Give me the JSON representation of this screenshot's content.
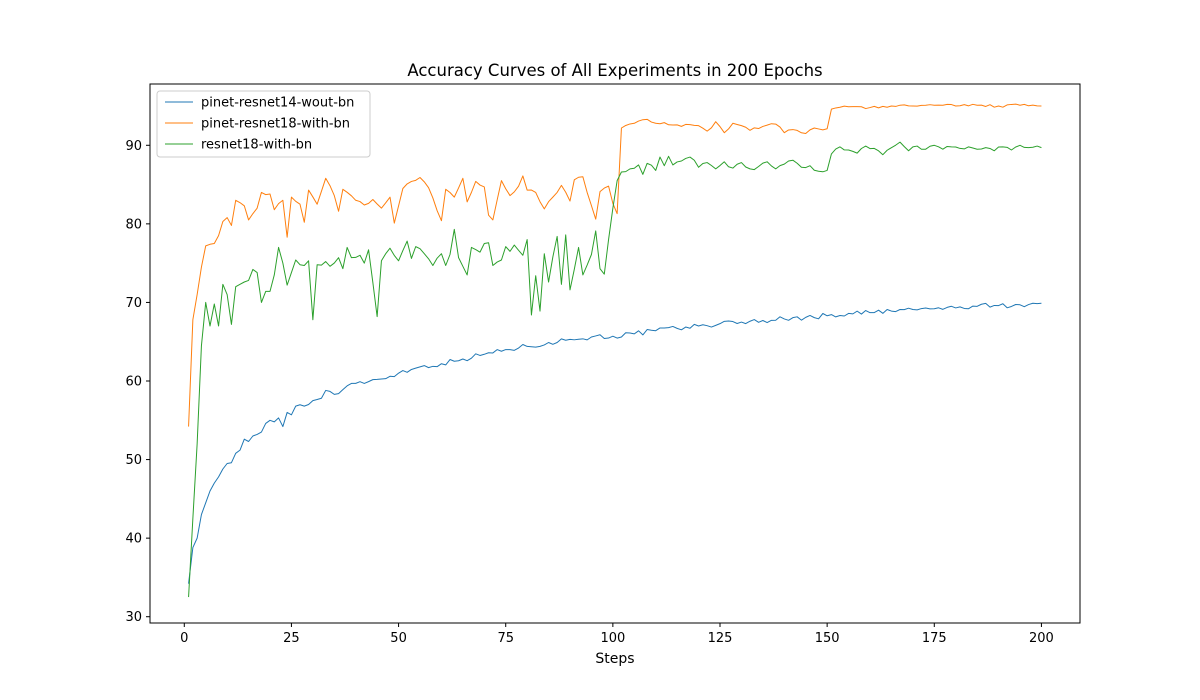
{
  "chart_data": {
    "type": "line",
    "title": "Accuracy Curves of All Experiments in 200 Epochs",
    "xlabel": "Steps",
    "ylabel": "",
    "xlim": [
      -8,
      209
    ],
    "ylim": [
      29.2,
      97.8
    ],
    "xticks": [
      0,
      25,
      50,
      75,
      100,
      125,
      150,
      175,
      200
    ],
    "yticks": [
      30,
      40,
      50,
      60,
      70,
      80,
      90
    ],
    "grid": false,
    "legend_position": "top-left",
    "x_range": [
      1,
      200
    ],
    "series": [
      {
        "name": "pinet-resnet14-wout-bn",
        "color": "#1f77b4",
        "keypoints": [
          [
            1,
            34.2
          ],
          [
            2,
            38.8
          ],
          [
            3,
            40
          ],
          [
            4,
            43
          ],
          [
            5,
            44.5
          ],
          [
            6,
            46
          ],
          [
            7,
            47
          ],
          [
            8,
            47.8
          ],
          [
            9,
            48.8
          ],
          [
            10,
            49.5
          ],
          [
            11,
            49.6
          ],
          [
            12,
            50.8
          ],
          [
            13,
            51.2
          ],
          [
            14,
            52.6
          ],
          [
            15,
            52.3
          ],
          [
            16,
            53
          ],
          [
            17,
            53.2
          ],
          [
            18,
            53.5
          ],
          [
            19,
            54.6
          ],
          [
            20,
            55
          ],
          [
            22,
            55.3
          ],
          [
            23,
            54.2
          ],
          [
            24,
            56
          ],
          [
            25,
            55.7
          ],
          [
            26,
            56.8
          ],
          [
            28,
            56.8
          ],
          [
            30,
            57.5
          ],
          [
            32,
            57.8
          ],
          [
            33,
            58.8
          ],
          [
            35,
            58.3
          ],
          [
            40,
            59.7
          ],
          [
            45,
            60.2
          ],
          [
            50,
            61
          ],
          [
            55,
            61.8
          ],
          [
            60,
            62.2
          ],
          [
            65,
            62.8
          ],
          [
            70,
            63.4
          ],
          [
            75,
            64
          ],
          [
            80,
            64.4
          ],
          [
            85,
            64.9
          ],
          [
            90,
            65.3
          ],
          [
            95,
            65.6
          ],
          [
            100,
            65.7
          ],
          [
            105,
            66
          ],
          [
            110,
            66.4
          ],
          [
            115,
            66.7
          ],
          [
            120,
            67
          ],
          [
            125,
            67.3
          ],
          [
            130,
            67.5
          ],
          [
            135,
            67.7
          ],
          [
            140,
            67.9
          ],
          [
            145,
            68.1
          ],
          [
            150,
            68.3
          ],
          [
            155,
            68.6
          ],
          [
            160,
            68.7
          ],
          [
            165,
            68.9
          ],
          [
            170,
            69.1
          ],
          [
            175,
            69.2
          ],
          [
            180,
            69.3
          ],
          [
            185,
            69.5
          ],
          [
            190,
            69.6
          ],
          [
            195,
            69.7
          ],
          [
            200,
            69.9
          ]
        ],
        "noise": 0.35
      },
      {
        "name": "pinet-resnet18-with-bn",
        "color": "#ff7f0e",
        "keypoints": [
          [
            1,
            54.2
          ],
          [
            2,
            67.8
          ],
          [
            3,
            71
          ],
          [
            4,
            74.5
          ],
          [
            5,
            77.2
          ],
          [
            6,
            77.4
          ],
          [
            7,
            77.5
          ],
          [
            8,
            78.5
          ],
          [
            9,
            80.3
          ],
          [
            10,
            80.8
          ],
          [
            11,
            79.8
          ],
          [
            12,
            83
          ],
          [
            13,
            82.7
          ],
          [
            14,
            82.3
          ],
          [
            15,
            80.5
          ],
          [
            16,
            81.3
          ],
          [
            17,
            82
          ],
          [
            18,
            84
          ],
          [
            20,
            83.8
          ],
          [
            21,
            81.8
          ],
          [
            23,
            83
          ],
          [
            24,
            78.3
          ],
          [
            25,
            83.4
          ],
          [
            27,
            82.5
          ],
          [
            28,
            80.2
          ],
          [
            29,
            84.3
          ],
          [
            31,
            82.5
          ],
          [
            33,
            85.8
          ],
          [
            35,
            83.6
          ],
          [
            36,
            81.6
          ],
          [
            37,
            84.4
          ],
          [
            40,
            83
          ],
          [
            42,
            82.4
          ],
          [
            44,
            83.1
          ],
          [
            46,
            82
          ],
          [
            48,
            83.4
          ],
          [
            49,
            80.1
          ],
          [
            51,
            84.5
          ],
          [
            53,
            85.4
          ],
          [
            55,
            85.9
          ],
          [
            57,
            84.6
          ],
          [
            58,
            83.3
          ],
          [
            60,
            80.4
          ],
          [
            61,
            84.4
          ],
          [
            63,
            83.4
          ],
          [
            65,
            85.8
          ],
          [
            66,
            82.8
          ],
          [
            68,
            85.4
          ],
          [
            70,
            84.7
          ],
          [
            71,
            81.1
          ],
          [
            72,
            80.5
          ],
          [
            74,
            85.5
          ],
          [
            76,
            83.6
          ],
          [
            78,
            84.8
          ],
          [
            79,
            86.1
          ],
          [
            80,
            84.3
          ],
          [
            82,
            84
          ],
          [
            84,
            81.9
          ],
          [
            86,
            83.4
          ],
          [
            88,
            84.9
          ],
          [
            90,
            82.9
          ],
          [
            91,
            85.6
          ],
          [
            93,
            86
          ],
          [
            94,
            84
          ],
          [
            96,
            80.6
          ],
          [
            97,
            84.1
          ],
          [
            99,
            84.8
          ],
          [
            100,
            82.6
          ],
          [
            101,
            81.3
          ],
          [
            102,
            92.2
          ],
          [
            105,
            92.8
          ],
          [
            108,
            93.3
          ],
          [
            110,
            92.8
          ],
          [
            115,
            92.6
          ],
          [
            120,
            92.5
          ],
          [
            122,
            91.8
          ],
          [
            124,
            93
          ],
          [
            126,
            91.6
          ],
          [
            128,
            92.8
          ],
          [
            130,
            92.5
          ],
          [
            132,
            91.9
          ],
          [
            135,
            92.4
          ],
          [
            138,
            92.7
          ],
          [
            140,
            91.6
          ],
          [
            142,
            92
          ],
          [
            145,
            91.5
          ],
          [
            147,
            92.2
          ],
          [
            150,
            92.1
          ],
          [
            151,
            94.6
          ],
          [
            155,
            94.9
          ],
          [
            160,
            94.8
          ],
          [
            165,
            95
          ],
          [
            170,
            95
          ],
          [
            175,
            95.1
          ],
          [
            180,
            95
          ],
          [
            185,
            95.1
          ],
          [
            190,
            95
          ],
          [
            195,
            95.1
          ],
          [
            200,
            95
          ]
        ],
        "noise": 0.18
      },
      {
        "name": "resnet18-with-bn",
        "color": "#2ca02c",
        "keypoints": [
          [
            1,
            32.5
          ],
          [
            2,
            42.5
          ],
          [
            3,
            52
          ],
          [
            4,
            64.5
          ],
          [
            5,
            70
          ],
          [
            6,
            67
          ],
          [
            7,
            69.8
          ],
          [
            8,
            67
          ],
          [
            9,
            72.3
          ],
          [
            10,
            71
          ],
          [
            11,
            67.2
          ],
          [
            12,
            72
          ],
          [
            13,
            72.3
          ],
          [
            14,
            72.6
          ],
          [
            15,
            72.8
          ],
          [
            16,
            74.2
          ],
          [
            17,
            73.8
          ],
          [
            18,
            70
          ],
          [
            19,
            71.4
          ],
          [
            20,
            71.4
          ],
          [
            21,
            73.5
          ],
          [
            22,
            77
          ],
          [
            23,
            75
          ],
          [
            24,
            72.2
          ],
          [
            25,
            73.8
          ],
          [
            26,
            75.4
          ],
          [
            27,
            74.8
          ],
          [
            28,
            74.7
          ],
          [
            29,
            75.3
          ],
          [
            30,
            67.8
          ],
          [
            31,
            74.8
          ],
          [
            33,
            75.2
          ],
          [
            34,
            74.6
          ],
          [
            36,
            75.7
          ],
          [
            37,
            74.3
          ],
          [
            38,
            77
          ],
          [
            39,
            75.7
          ],
          [
            41,
            76
          ],
          [
            42,
            75
          ],
          [
            43,
            76.7
          ],
          [
            45,
            68.2
          ],
          [
            46,
            75.3
          ],
          [
            47,
            76.2
          ],
          [
            48,
            76.9
          ],
          [
            50,
            75.3
          ],
          [
            52,
            77.8
          ],
          [
            53,
            75.6
          ],
          [
            54,
            77.1
          ],
          [
            56,
            76.2
          ],
          [
            58,
            74.7
          ],
          [
            60,
            76.2
          ],
          [
            61,
            74.7
          ],
          [
            62,
            76.1
          ],
          [
            63,
            79.3
          ],
          [
            64,
            75.7
          ],
          [
            65,
            74.6
          ],
          [
            66,
            73.5
          ],
          [
            67,
            77
          ],
          [
            69,
            76.4
          ],
          [
            70,
            77.5
          ],
          [
            71,
            77.6
          ],
          [
            72,
            74.7
          ],
          [
            74,
            75.4
          ],
          [
            75,
            77.1
          ],
          [
            76,
            76.5
          ],
          [
            77,
            77.3
          ],
          [
            79,
            76
          ],
          [
            80,
            78
          ],
          [
            81,
            68.4
          ],
          [
            82,
            73.4
          ],
          [
            83,
            68.9
          ],
          [
            84,
            76.2
          ],
          [
            85,
            72.6
          ],
          [
            86,
            75.8
          ],
          [
            87,
            78.4
          ],
          [
            88,
            72.3
          ],
          [
            89,
            78.6
          ],
          [
            90,
            71.6
          ],
          [
            92,
            77
          ],
          [
            93,
            73.5
          ],
          [
            95,
            76.1
          ],
          [
            96,
            79.1
          ],
          [
            97,
            74.3
          ],
          [
            98,
            73.6
          ],
          [
            99,
            78
          ],
          [
            100,
            82
          ],
          [
            101,
            85.5
          ],
          [
            102,
            86.6
          ],
          [
            104,
            87
          ],
          [
            106,
            87.5
          ],
          [
            107,
            86.3
          ],
          [
            108,
            87.7
          ],
          [
            110,
            86.8
          ],
          [
            111,
            88.5
          ],
          [
            112,
            87.4
          ],
          [
            113,
            88.6
          ],
          [
            114,
            87.5
          ],
          [
            116,
            88
          ],
          [
            118,
            88.5
          ],
          [
            120,
            87.2
          ],
          [
            122,
            87.8
          ],
          [
            124,
            87
          ],
          [
            126,
            87.9
          ],
          [
            128,
            87.1
          ],
          [
            130,
            87.8
          ],
          [
            132,
            87
          ],
          [
            134,
            87.3
          ],
          [
            136,
            87.9
          ],
          [
            138,
            87
          ],
          [
            140,
            87.6
          ],
          [
            142,
            88.1
          ],
          [
            144,
            87.2
          ],
          [
            146,
            87.4
          ],
          [
            148,
            86.7
          ],
          [
            150,
            86.8
          ],
          [
            151,
            88.9
          ],
          [
            153,
            89.8
          ],
          [
            155,
            89.4
          ],
          [
            157,
            89
          ],
          [
            159,
            89.9
          ],
          [
            161,
            89.6
          ],
          [
            163,
            88.8
          ],
          [
            165,
            89.7
          ],
          [
            167,
            90.4
          ],
          [
            169,
            89.3
          ],
          [
            171,
            89.9
          ],
          [
            173,
            89.5
          ],
          [
            175,
            90
          ],
          [
            177,
            89.5
          ],
          [
            179,
            89.8
          ],
          [
            181,
            89.6
          ],
          [
            183,
            89.8
          ],
          [
            185,
            89.5
          ],
          [
            187,
            89.7
          ],
          [
            189,
            89.3
          ],
          [
            191,
            89.8
          ],
          [
            193,
            89.4
          ],
          [
            195,
            90
          ],
          [
            197,
            89.7
          ],
          [
            199,
            89.9
          ],
          [
            200,
            89.7
          ]
        ],
        "noise": 0.25
      }
    ]
  }
}
